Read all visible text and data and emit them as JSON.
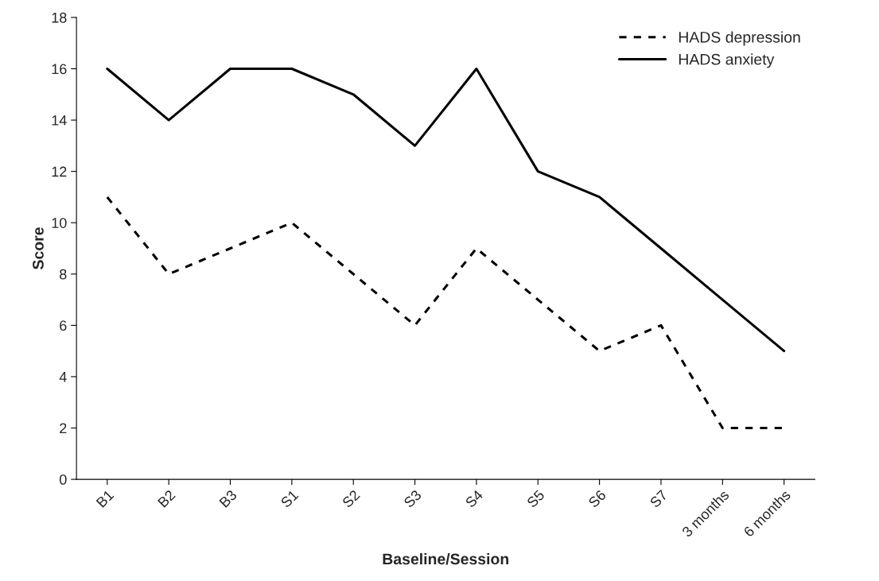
{
  "chart_data": {
    "type": "line",
    "xlabel": "Baseline/Session",
    "ylabel": "Score",
    "categories": [
      "B1",
      "B2",
      "B3",
      "S1",
      "S2",
      "S3",
      "S4",
      "S5",
      "S6",
      "S7",
      "3 months",
      "6 months"
    ],
    "series": [
      {
        "name": "HADS depression",
        "color": "#000000",
        "line_style": "dashed",
        "values": [
          11,
          8,
          9,
          10,
          8,
          6,
          9,
          7,
          5,
          6,
          2,
          2
        ]
      },
      {
        "name": "HADS anxiety",
        "color": "#000000",
        "line_style": "solid",
        "values": [
          16,
          14,
          16,
          16,
          15,
          13,
          16,
          12,
          11,
          9,
          7,
          5
        ]
      }
    ],
    "ylim": [
      0,
      18
    ],
    "yticks": [
      0,
      2,
      4,
      6,
      8,
      10,
      12,
      14,
      16,
      18
    ],
    "grid": false,
    "legend": "top right",
    "marker": "none"
  }
}
